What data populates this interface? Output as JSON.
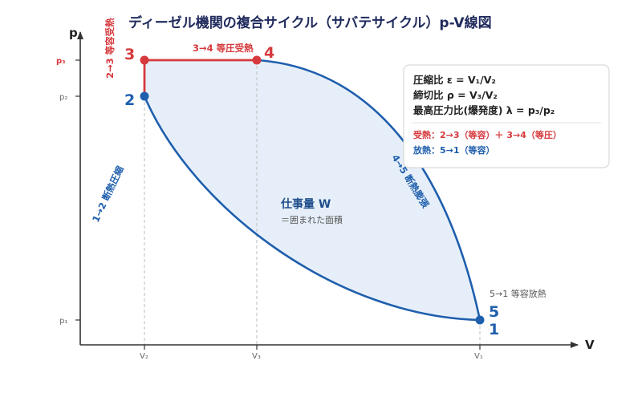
{
  "title": "ディーゼル機関の複合サイクル（サバテサイクル）p-V線図",
  "axes": {
    "x_name": "V",
    "y_name": "p",
    "x_ticks": [
      "V₂",
      "V₃",
      "V₁"
    ],
    "y_ticks": [
      "p₃",
      "p₂",
      "p₁"
    ]
  },
  "points": {
    "p1": "1",
    "p2": "2",
    "p3": "3",
    "p4": "4",
    "p5": "5"
  },
  "processes": {
    "compression": "1→2 断熱圧縮",
    "const_volume": "2→3 等容受熱",
    "const_pressure": "3→4 等圧受熱",
    "expansion": "4→5 断熱膨張",
    "release": "5→1 等容放熱"
  },
  "work": {
    "title": "仕事量 W",
    "subtitle": "＝囲まれた面積"
  },
  "info": {
    "line1": "圧縮比 ε = V₁/V₂",
    "line2": "締切比 ρ = V₃/V₂",
    "line3": "最高圧力比(爆発度) λ = p₃/p₂",
    "heat_in": "受熱：2→3（等容）＋ 3→4（等圧）",
    "heat_out": "放熱：5→1（等容）"
  },
  "colors": {
    "blue": "#1f5fad",
    "red": "#d6393d",
    "fill": "#e6eff9"
  }
}
